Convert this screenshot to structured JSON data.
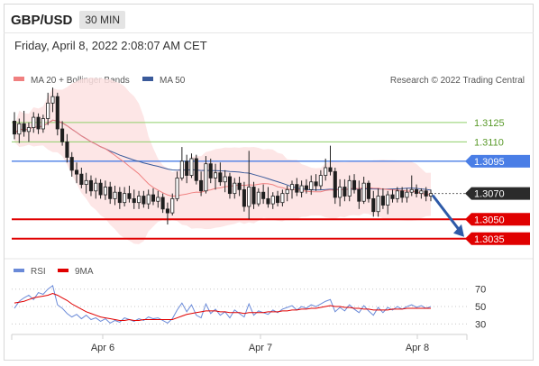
{
  "header": {
    "symbol": "GBP/USD",
    "timeframe": "30 MIN",
    "datetime": "Friday, April 8, 2022 2:08:07 AM CET"
  },
  "legend": {
    "ma20": "MA 20 + Bollinger Bands",
    "ma50": "MA 50",
    "copyright": "Research © 2022 Trading Central",
    "rsi": "RSI",
    "rsi_ma": "9MA"
  },
  "colors": {
    "ma20": "#f08080",
    "ma50": "#3a5a9a",
    "bollinger": "#fde2e2",
    "candle_up": "#ffffff",
    "candle_down": "#1e1e1e",
    "green_level": "#8fcf6a",
    "blue_level": "#4a7ee6",
    "red_level": "#e00000",
    "arrow": "#2e5aa8",
    "rsi": "#6a8ad8"
  },
  "chart_data": {
    "type": "candlestick",
    "ylim": [
      1.3023,
      1.315
    ],
    "x_ticks": [
      "Apr 6",
      "Apr 7",
      "Apr 8"
    ],
    "levels": [
      {
        "label": "1.3125",
        "value": 1.3125,
        "kind": "green"
      },
      {
        "label": "1.3110",
        "value": 1.311,
        "kind": "green"
      },
      {
        "label": "1.3095",
        "value": 1.3095,
        "kind": "blue"
      },
      {
        "label": "1.3070",
        "value": 1.307,
        "kind": "last"
      },
      {
        "label": "1.3050",
        "value": 1.305,
        "kind": "red"
      },
      {
        "label": "1.3035",
        "value": 1.3035,
        "kind": "red"
      }
    ],
    "candles": [
      [
        1.3126,
        1.3133,
        1.3112,
        1.3116
      ],
      [
        1.3116,
        1.3128,
        1.3109,
        1.3124
      ],
      [
        1.3124,
        1.3134,
        1.3114,
        1.3118
      ],
      [
        1.3118,
        1.3125,
        1.311,
        1.3121
      ],
      [
        1.3121,
        1.3133,
        1.3117,
        1.3129
      ],
      [
        1.3129,
        1.3132,
        1.3116,
        1.312
      ],
      [
        1.312,
        1.3131,
        1.3117,
        1.3128
      ],
      [
        1.3128,
        1.3148,
        1.3123,
        1.314
      ],
      [
        1.314,
        1.3152,
        1.3133,
        1.3145
      ],
      [
        1.3145,
        1.3148,
        1.3115,
        1.312
      ],
      [
        1.312,
        1.3126,
        1.3107,
        1.311
      ],
      [
        1.311,
        1.3116,
        1.3094,
        1.3098
      ],
      [
        1.3098,
        1.3102,
        1.3083,
        1.3088
      ],
      [
        1.3088,
        1.3094,
        1.3078,
        1.3085
      ],
      [
        1.3085,
        1.309,
        1.3074,
        1.3077
      ],
      [
        1.3077,
        1.3086,
        1.307,
        1.308
      ],
      [
        1.308,
        1.3084,
        1.3068,
        1.3072
      ],
      [
        1.3072,
        1.3082,
        1.3066,
        1.3078
      ],
      [
        1.3078,
        1.3081,
        1.3066,
        1.3069
      ],
      [
        1.3069,
        1.308,
        1.3065,
        1.3075
      ],
      [
        1.3075,
        1.3079,
        1.3062,
        1.3066
      ],
      [
        1.3066,
        1.3076,
        1.3061,
        1.3071
      ],
      [
        1.3071,
        1.3075,
        1.3058,
        1.3063
      ],
      [
        1.3063,
        1.3075,
        1.306,
        1.307
      ],
      [
        1.307,
        1.3076,
        1.3063,
        1.3066
      ],
      [
        1.3066,
        1.3073,
        1.3058,
        1.3063
      ],
      [
        1.3063,
        1.3072,
        1.3058,
        1.3068
      ],
      [
        1.3068,
        1.3072,
        1.3059,
        1.3062
      ],
      [
        1.3062,
        1.3073,
        1.3058,
        1.3069
      ],
      [
        1.3069,
        1.3074,
        1.3061,
        1.3064
      ],
      [
        1.3064,
        1.3072,
        1.3059,
        1.3067
      ],
      [
        1.3067,
        1.307,
        1.3055,
        1.3058
      ],
      [
        1.3058,
        1.3063,
        1.3046,
        1.3055
      ],
      [
        1.3055,
        1.307,
        1.3053,
        1.3066
      ],
      [
        1.3066,
        1.3087,
        1.3064,
        1.3082
      ],
      [
        1.3082,
        1.3106,
        1.308,
        1.3095
      ],
      [
        1.3095,
        1.31,
        1.3078,
        1.3084
      ],
      [
        1.3084,
        1.3101,
        1.3082,
        1.3097
      ],
      [
        1.3097,
        1.31,
        1.3077,
        1.308
      ],
      [
        1.308,
        1.3087,
        1.3068,
        1.3072
      ],
      [
        1.3072,
        1.3099,
        1.307,
        1.3093
      ],
      [
        1.3093,
        1.3097,
        1.3078,
        1.3082
      ],
      [
        1.3082,
        1.3093,
        1.3073,
        1.3086
      ],
      [
        1.3086,
        1.3094,
        1.3076,
        1.3079
      ],
      [
        1.3079,
        1.3088,
        1.3071,
        1.3083
      ],
      [
        1.3083,
        1.3086,
        1.3066,
        1.307
      ],
      [
        1.307,
        1.3082,
        1.3066,
        1.3078
      ],
      [
        1.3078,
        1.3083,
        1.3068,
        1.3073
      ],
      [
        1.3073,
        1.3079,
        1.3056,
        1.306
      ],
      [
        1.306,
        1.3103,
        1.305,
        1.3075
      ],
      [
        1.3075,
        1.3079,
        1.3058,
        1.3062
      ],
      [
        1.3062,
        1.3074,
        1.306,
        1.3071
      ],
      [
        1.3071,
        1.3077,
        1.3062,
        1.3066
      ],
      [
        1.3066,
        1.3075,
        1.3059,
        1.3062
      ],
      [
        1.3062,
        1.3071,
        1.3058,
        1.3068
      ],
      [
        1.3068,
        1.3072,
        1.306,
        1.3063
      ],
      [
        1.3063,
        1.3073,
        1.306,
        1.307
      ],
      [
        1.307,
        1.3076,
        1.3064,
        1.3073
      ],
      [
        1.3073,
        1.308,
        1.3066,
        1.3077
      ],
      [
        1.3077,
        1.3082,
        1.3068,
        1.3071
      ],
      [
        1.3071,
        1.308,
        1.3067,
        1.3076
      ],
      [
        1.3076,
        1.3081,
        1.307,
        1.3073
      ],
      [
        1.3073,
        1.3084,
        1.3069,
        1.3079
      ],
      [
        1.3079,
        1.3085,
        1.3072,
        1.3076
      ],
      [
        1.3076,
        1.3088,
        1.3073,
        1.3084
      ],
      [
        1.3084,
        1.3097,
        1.308,
        1.309
      ],
      [
        1.309,
        1.3107,
        1.3084,
        1.3087
      ],
      [
        1.3087,
        1.309,
        1.3062,
        1.3067
      ],
      [
        1.3067,
        1.3081,
        1.306,
        1.3075
      ],
      [
        1.3075,
        1.3081,
        1.3064,
        1.3068
      ],
      [
        1.3068,
        1.3084,
        1.3064,
        1.308
      ],
      [
        1.308,
        1.3085,
        1.307,
        1.3073
      ],
      [
        1.3073,
        1.308,
        1.3058,
        1.3064
      ],
      [
        1.3064,
        1.3083,
        1.3062,
        1.3078
      ],
      [
        1.3078,
        1.308,
        1.3063,
        1.3066
      ],
      [
        1.3066,
        1.3072,
        1.3052,
        1.3056
      ],
      [
        1.3056,
        1.3074,
        1.3052,
        1.3068
      ],
      [
        1.3068,
        1.3074,
        1.3058,
        1.3061
      ],
      [
        1.3061,
        1.3072,
        1.3054,
        1.3069
      ],
      [
        1.3069,
        1.3073,
        1.3063,
        1.3066
      ],
      [
        1.3066,
        1.3075,
        1.3063,
        1.3072
      ],
      [
        1.3072,
        1.3075,
        1.3063,
        1.3067
      ],
      [
        1.3067,
        1.3074,
        1.3063,
        1.3071
      ],
      [
        1.3071,
        1.3084,
        1.3068,
        1.3073
      ],
      [
        1.3073,
        1.3077,
        1.3067,
        1.307
      ],
      [
        1.307,
        1.3074,
        1.3066,
        1.3072
      ],
      [
        1.3072,
        1.3075,
        1.3064,
        1.3068
      ],
      [
        1.3068,
        1.3073,
        1.3064,
        1.307
      ]
    ],
    "rsi": {
      "label": "RSI",
      "ma_label": "9MA",
      "ylim": [
        20,
        78
      ],
      "ticks": [
        70,
        50,
        30
      ],
      "rsi_values": [
        48,
        56,
        60,
        63,
        58,
        66,
        64,
        70,
        74,
        52,
        48,
        42,
        38,
        41,
        36,
        40,
        35,
        37,
        33,
        36,
        31,
        34,
        32,
        37,
        35,
        33,
        36,
        34,
        38,
        36,
        37,
        34,
        31,
        36,
        46,
        54,
        44,
        52,
        40,
        37,
        53,
        42,
        47,
        40,
        44,
        37,
        46,
        42,
        38,
        53,
        40,
        45,
        43,
        41,
        46,
        43,
        47,
        49,
        51,
        46,
        50,
        48,
        52,
        50,
        53,
        56,
        58,
        44,
        49,
        45,
        52,
        47,
        43,
        51,
        45,
        40,
        49,
        43,
        49,
        46,
        50,
        47,
        50,
        52,
        49,
        51,
        48,
        50
      ],
      "ma_values": [
        54,
        55,
        56,
        58,
        60,
        61,
        62,
        63,
        65,
        63,
        60,
        57,
        53,
        50,
        47,
        44,
        42,
        40,
        38,
        37,
        36,
        35,
        34,
        34,
        35,
        34,
        34,
        35,
        35,
        35,
        35,
        35,
        35,
        35,
        37,
        39,
        41,
        42,
        43,
        44,
        45,
        45,
        45,
        44,
        44,
        43,
        43,
        43,
        42,
        43,
        43,
        43,
        43,
        44,
        44,
        44,
        45,
        45,
        46,
        46,
        47,
        47,
        48,
        48,
        49,
        50,
        51,
        50,
        50,
        49,
        49,
        48,
        48,
        47,
        47,
        46,
        46,
        46,
        46,
        47,
        47,
        47,
        48,
        48,
        48,
        48,
        48,
        48
      ]
    }
  }
}
